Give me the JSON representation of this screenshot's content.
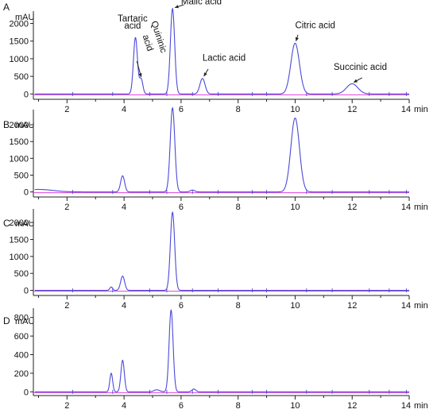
{
  "colors": {
    "trace": "#4a4ad8",
    "baseline": "#e040e0",
    "axis": "#222222",
    "text": "#111111"
  },
  "chart_data": [
    {
      "type": "line",
      "panel": "A",
      "y_unit": "mAU",
      "x_unit": "min",
      "xlim": [
        0,
        14
      ],
      "ylim": [
        -150,
        2350
      ],
      "x_ticks": [
        "2",
        "4",
        "6",
        "8",
        "10",
        "12",
        "14"
      ],
      "y_ticks": [
        "0",
        "500",
        "1000",
        "1500",
        "2000"
      ],
      "baseline_value": 0,
      "peaks": [
        {
          "rt": 4.4,
          "height": 1600,
          "width": 0.07
        },
        {
          "rt": 4.6,
          "height": 420,
          "width": 0.06
        },
        {
          "rt": 5.7,
          "height": 2420,
          "width": 0.075
        },
        {
          "rt": 6.75,
          "height": 440,
          "width": 0.09
        },
        {
          "rt": 10.0,
          "height": 1440,
          "width": 0.15
        },
        {
          "rt": 12.0,
          "height": 290,
          "width": 0.2
        }
      ],
      "annotations": [
        {
          "text": "Tartaric",
          "x": 4.3,
          "y": 2060,
          "anchor": "middle"
        },
        {
          "text": "acid",
          "x": 4.3,
          "y": 1850,
          "anchor": "middle"
        },
        {
          "text": "Quininic",
          "x": 4.95,
          "y": 2040,
          "anchor": "start",
          "rotate": 72
        },
        {
          "text": "acid",
          "x": 4.65,
          "y": 1650,
          "anchor": "start",
          "rotate": 72
        },
        {
          "text": "Malic acid",
          "x": 6.0,
          "y": 2540,
          "anchor": "start"
        },
        {
          "text": "Lactic acid",
          "x": 6.75,
          "y": 940,
          "anchor": "start"
        },
        {
          "text": "Citric acid",
          "x": 10.0,
          "y": 1870,
          "anchor": "start"
        },
        {
          "text": "Succinic acid",
          "x": 11.35,
          "y": 680,
          "anchor": "start"
        }
      ],
      "arrows": [
        {
          "from": [
            4.45,
            930
          ],
          "to": [
            4.6,
            480
          ]
        },
        {
          "from": [
            6.1,
            2530
          ],
          "to": [
            5.78,
            2450
          ]
        },
        {
          "from": [
            6.95,
            710
          ],
          "to": [
            6.8,
            500
          ]
        },
        {
          "from": [
            10.1,
            1680
          ],
          "to": [
            10.03,
            1500
          ]
        },
        {
          "from": [
            12.35,
            460
          ],
          "to": [
            12.05,
            330
          ]
        }
      ]
    },
    {
      "type": "line",
      "panel": "B",
      "y_unit": "mAU",
      "x_unit": "min",
      "xlim": [
        0,
        14
      ],
      "ylim": [
        -150,
        2450
      ],
      "x_ticks": [
        "2",
        "4",
        "6",
        "8",
        "10",
        "12",
        "14"
      ],
      "y_ticks": [
        "0",
        "500",
        "1000",
        "1500",
        "2000"
      ],
      "baseline_value": 0,
      "peaks": [
        {
          "rt": 1.0,
          "height": 75,
          "width": 0.5
        },
        {
          "rt": 3.95,
          "height": 480,
          "width": 0.07
        },
        {
          "rt": 5.7,
          "height": 2500,
          "width": 0.08
        },
        {
          "rt": 6.4,
          "height": 55,
          "width": 0.08
        },
        {
          "rt": 10.0,
          "height": 2200,
          "width": 0.15
        }
      ]
    },
    {
      "type": "line",
      "panel": "C",
      "y_unit": "mAU",
      "x_unit": "min",
      "xlim": [
        0,
        14
      ],
      "ylim": [
        -150,
        2400
      ],
      "x_ticks": [
        "2",
        "4",
        "6",
        "8",
        "10",
        "12",
        "14"
      ],
      "y_ticks": [
        "0",
        "500",
        "1000",
        "1500",
        "2000"
      ],
      "baseline_value": 0,
      "peaks": [
        {
          "rt": 3.55,
          "height": 100,
          "width": 0.05
        },
        {
          "rt": 3.95,
          "height": 420,
          "width": 0.07
        },
        {
          "rt": 5.7,
          "height": 2300,
          "width": 0.075
        }
      ]
    },
    {
      "type": "line",
      "panel": "D",
      "y_unit": "mAU",
      "x_unit": "min",
      "xlim": [
        0,
        14
      ],
      "ylim": [
        -40,
        900
      ],
      "x_ticks": [
        "2",
        "4",
        "6",
        "8",
        "10",
        "12",
        "14"
      ],
      "y_ticks": [
        "0",
        "200",
        "400",
        "600",
        "800"
      ],
      "baseline_value": 0,
      "peaks": [
        {
          "rt": 3.55,
          "height": 200,
          "width": 0.05
        },
        {
          "rt": 3.95,
          "height": 340,
          "width": 0.06
        },
        {
          "rt": 5.15,
          "height": 22,
          "width": 0.1
        },
        {
          "rt": 5.65,
          "height": 880,
          "width": 0.07
        },
        {
          "rt": 6.45,
          "height": 30,
          "width": 0.07
        }
      ]
    }
  ]
}
